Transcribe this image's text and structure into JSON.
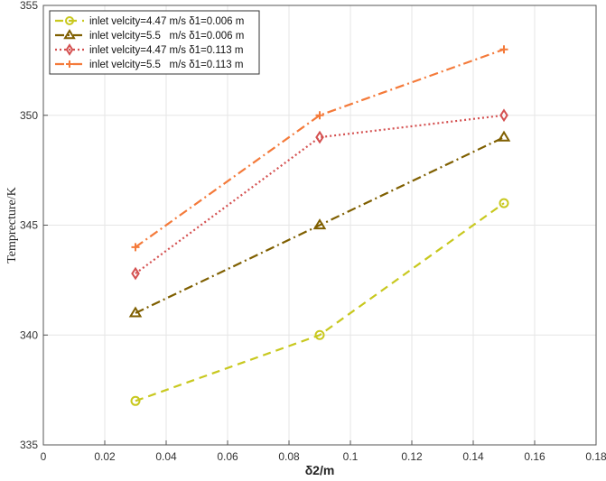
{
  "chart_data": {
    "type": "line",
    "xlabel": "δ2/m",
    "ylabel": "Temprecture/K",
    "xlim": [
      0,
      0.18
    ],
    "ylim": [
      335,
      355
    ],
    "xticks": [
      "0",
      "0.02",
      "0.04",
      "0.06",
      "0.08",
      "0.1",
      "0.12",
      "0.14",
      "0.16",
      "0.18"
    ],
    "yticks": [
      "335",
      "340",
      "345",
      "350",
      "355"
    ],
    "grid": true,
    "legend_position": "top-left",
    "x": [
      0.03,
      0.09,
      0.15
    ],
    "series": [
      {
        "name": "inlet velcity=4.47 m/s δ1=0.006 m",
        "values": [
          337,
          340,
          346
        ],
        "color": "#C8C81E",
        "marker": "circle",
        "dash": "dashed"
      },
      {
        "name": "inlet velcity=5.5   m/s δ1=0.006 m",
        "values": [
          341,
          345,
          349
        ],
        "color": "#7F5F00",
        "marker": "triangle",
        "dash": "dashdot"
      },
      {
        "name": "inlet velcity=4.47 m/s δ1=0.113 m",
        "values": [
          342.8,
          349,
          350
        ],
        "color": "#D45050",
        "marker": "diamond",
        "dash": "dotted"
      },
      {
        "name": "inlet velcity=5.5   m/s δ1=0.113 m",
        "values": [
          344,
          350,
          353
        ],
        "color": "#F47A3A",
        "marker": "plus",
        "dash": "dashdot"
      }
    ]
  }
}
